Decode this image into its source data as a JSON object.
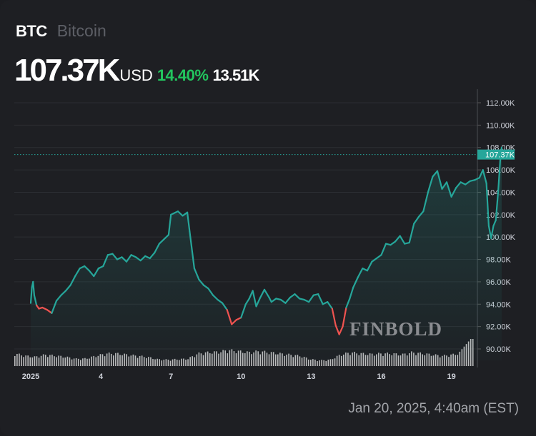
{
  "header": {
    "symbol": "BTC",
    "name": "Bitcoin",
    "price": "107.37K",
    "currency": "USD",
    "change_percent": "14.40%",
    "change_value": "13.51K"
  },
  "timestamp": "Jan 20, 2025, 4:40am (EST)",
  "watermark": "FINBOLD",
  "colors": {
    "background": "#1e1f23",
    "line_up": "#26a69a",
    "line_down": "#ef5350",
    "positive_text": "#22c55e",
    "price_label_bg": "#26a69a",
    "volume": "#d9d9d9"
  },
  "chart_data": {
    "type": "line",
    "title": "BTC Bitcoin",
    "xlabel": "",
    "ylabel": "USD",
    "x_ticks": [
      "2025",
      "4",
      "7",
      "10",
      "13",
      "16",
      "19"
    ],
    "y_ticks": [
      "112.00K",
      "110.00K",
      "108.00K",
      "106.00K",
      "104.00K",
      "102.00K",
      "100.00K",
      "98.00K",
      "96.00K",
      "94.00K",
      "92.00K",
      "90.00K"
    ],
    "ylim": [
      88500,
      113000
    ],
    "current_price_label": "107.37K",
    "grid": "horizontal",
    "baseline": 93860,
    "series": [
      {
        "name": "BTC/USD",
        "x_days": [
          0.0,
          0.05,
          0.1,
          0.15,
          0.25,
          0.35,
          0.5,
          0.7,
          0.9,
          1.1,
          1.3,
          1.5,
          1.7,
          1.9,
          2.1,
          2.3,
          2.5,
          2.7,
          2.9,
          3.1,
          3.3,
          3.5,
          3.7,
          3.9,
          4.1,
          4.3,
          4.5,
          4.7,
          4.9,
          5.1,
          5.3,
          5.5,
          5.7,
          5.9,
          6.0,
          6.1,
          6.3,
          6.5,
          6.7,
          6.8,
          7.0,
          7.2,
          7.4,
          7.6,
          7.8,
          8.0,
          8.2,
          8.4,
          8.6,
          8.8,
          9.0,
          9.2,
          9.35,
          9.5,
          9.65,
          9.8,
          10.0,
          10.2,
          10.3,
          10.5,
          10.7,
          10.9,
          11.1,
          11.3,
          11.5,
          11.7,
          11.9,
          12.1,
          12.3,
          12.5,
          12.7,
          12.9,
          13.05,
          13.2,
          13.35,
          13.5,
          13.65,
          13.8,
          14.0,
          14.2,
          14.4,
          14.6,
          14.8,
          15.0,
          15.2,
          15.4,
          15.6,
          15.8,
          16.0,
          16.2,
          16.4,
          16.6,
          16.8,
          17.0,
          17.2,
          17.4,
          17.6,
          17.8,
          18.0,
          18.2,
          18.4,
          18.6,
          18.8,
          19.0,
          19.2,
          19.35,
          19.5,
          19.6,
          19.7,
          19.8,
          19.9,
          20.0,
          20.1,
          20.15
        ],
        "values": [
          94100,
          95500,
          96000,
          94800,
          93900,
          93600,
          93700,
          93500,
          93200,
          94300,
          94800,
          95200,
          95700,
          96500,
          97200,
          97400,
          97000,
          96500,
          97200,
          97400,
          98400,
          98500,
          98000,
          98200,
          97800,
          98400,
          98200,
          97900,
          98300,
          98100,
          98600,
          99400,
          99800,
          100200,
          102000,
          102100,
          102300,
          101900,
          102200,
          100500,
          97200,
          96200,
          95700,
          95400,
          94800,
          94400,
          94100,
          93500,
          92200,
          92600,
          92800,
          94000,
          94500,
          95200,
          93800,
          94500,
          95300,
          94600,
          94200,
          94500,
          94400,
          94100,
          94600,
          94900,
          94500,
          94400,
          94200,
          94800,
          94900,
          94000,
          94200,
          93600,
          92100,
          91300,
          92000,
          93700,
          94500,
          95500,
          96400,
          97200,
          97000,
          97800,
          98100,
          98400,
          99400,
          99300,
          99600,
          100100,
          99400,
          99500,
          101200,
          101800,
          102300,
          104000,
          105400,
          105900,
          104300,
          104900,
          103600,
          104400,
          104900,
          104700,
          105000,
          105100,
          105300,
          106000,
          104800,
          101000,
          99900,
          101000,
          101500,
          104000,
          107200,
          108000
        ]
      }
    ],
    "volume": {
      "description": "relative volume bars beneath price, rising sharply at the end",
      "relative_levels": [
        0.55,
        0.45,
        0.4,
        0.5,
        0.45,
        0.4,
        0.32,
        0.33,
        0.45,
        0.55,
        0.55,
        0.5,
        0.45,
        0.4,
        0.3,
        0.28,
        0.3,
        0.32,
        0.55,
        0.6,
        0.62,
        0.7,
        0.65,
        0.6,
        0.65,
        0.6,
        0.55,
        0.5,
        0.45,
        0.3,
        0.25,
        0.28,
        0.5,
        0.6,
        0.55,
        0.52,
        0.55,
        0.55,
        0.5,
        0.6,
        0.55,
        0.5,
        0.45,
        0.5,
        0.6,
        1.0
      ]
    }
  }
}
